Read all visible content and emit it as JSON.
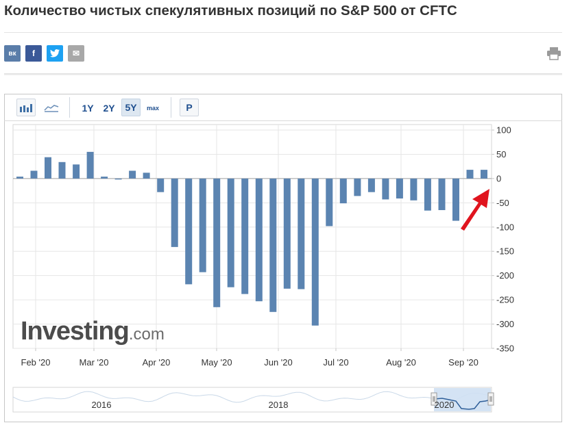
{
  "page": {
    "title": "Количество чистых спекулятивных позиций по S&P 500 от CFTC"
  },
  "share": {
    "vk_label": "вк",
    "fb_label": "f",
    "mail_label": "✉",
    "icons": [
      "vk-icon",
      "facebook-icon",
      "twitter-icon",
      "mail-icon",
      "print-icon"
    ]
  },
  "toolbar": {
    "range_1y": "1Y",
    "range_2y": "2Y",
    "range_5y": "5Y",
    "range_max": "max",
    "p_label": "P",
    "active_range": "5Y"
  },
  "watermark": {
    "brand": "Investing",
    "suffix": ".com"
  },
  "navigator": {
    "year_labels": [
      "2016",
      "2018",
      "2020"
    ]
  },
  "colors": {
    "bar": "#5b84b1",
    "accent_text": "#1f4f8f",
    "arrow": "#e0141e"
  },
  "chart_data": {
    "type": "bar",
    "x_labels": [
      "Feb '20",
      "Mar '20",
      "Apr '20",
      "May '20",
      "Jun '20",
      "Jul '20",
      "Aug '20",
      "Sep '20"
    ],
    "y_ticks": [
      100,
      50,
      0,
      -50,
      -100,
      -150,
      -200,
      -250,
      -300,
      -350
    ],
    "ylim": [
      -350,
      100
    ],
    "values": [
      4,
      16,
      44,
      34,
      29,
      55,
      4,
      -2,
      16,
      12,
      -28,
      -141,
      -218,
      -193,
      -265,
      -224,
      -238,
      -253,
      -275,
      -227,
      -228,
      -303,
      -98,
      -51,
      -36,
      -28,
      -43,
      -41,
      -45,
      -66,
      -65,
      -87,
      18,
      18
    ],
    "grid": true,
    "legend": "none"
  }
}
